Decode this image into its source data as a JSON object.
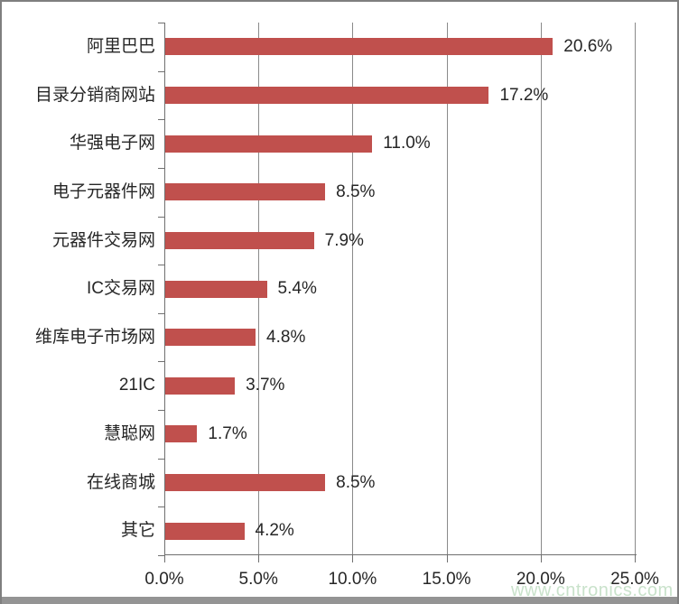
{
  "watermark": {
    "text": "www.cntronics.com",
    "color": "#c9e2cb"
  },
  "colors": {
    "bar": "#C0504D",
    "gridline": "#8a8a8a",
    "axis": "#707070",
    "text": "#262626",
    "frame_border": "#7f7f7f",
    "bottom_strip": "#949494"
  },
  "chart_data": {
    "type": "bar",
    "orientation": "horizontal",
    "title": "",
    "xlabel": "",
    "ylabel": "",
    "grid": true,
    "legend": false,
    "xlim": [
      0,
      25
    ],
    "categories": [
      "阿里巴巴",
      "目录分销商网站",
      "华强电子网",
      "电子元器件网",
      "元器件交易网",
      "IC交易网",
      "维库电子市场网",
      "21IC",
      "慧聪网",
      "在线商城",
      "其它"
    ],
    "values": [
      20.6,
      17.2,
      11.0,
      8.5,
      7.9,
      5.4,
      4.8,
      3.7,
      1.7,
      8.5,
      4.2
    ],
    "value_labels": [
      "20.6%",
      "17.2%",
      "11.0%",
      "8.5%",
      "7.9%",
      "5.4%",
      "4.8%",
      "3.7%",
      "1.7%",
      "8.5%",
      "4.2%"
    ],
    "x_ticks_values": [
      0,
      5,
      10,
      15,
      20,
      25
    ],
    "x_ticks": [
      "0.0%",
      "5.0%",
      "10.0%",
      "15.0%",
      "20.0%",
      "25.0%"
    ]
  }
}
